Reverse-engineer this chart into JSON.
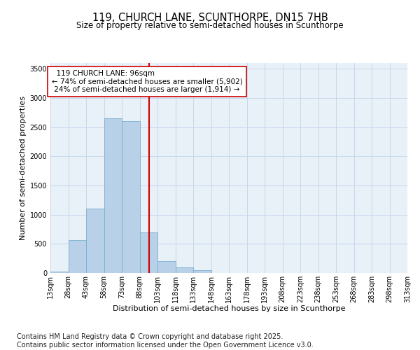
{
  "title": "119, CHURCH LANE, SCUNTHORPE, DN15 7HB",
  "subtitle": "Size of property relative to semi-detached houses in Scunthorpe",
  "xlabel": "Distribution of semi-detached houses by size in Scunthorpe",
  "ylabel": "Number of semi-detached properties",
  "property_size": 96,
  "property_label": "119 CHURCH LANE: 96sqm",
  "pct_smaller": 74,
  "pct_larger": 24,
  "n_smaller": "5,902",
  "n_larger": "1,914",
  "annotation_type": "semi-detached",
  "bar_color": "#b8d0e8",
  "bar_edge_color": "#7aaed0",
  "vline_color": "#cc0000",
  "box_edge_color": "#cc0000",
  "box_face_color": "white",
  "grid_color": "#c8d8ec",
  "background_color": "#e8f0f8",
  "bins": [
    13,
    28,
    43,
    58,
    73,
    88,
    103,
    118,
    133,
    148,
    163,
    178,
    193,
    208,
    223,
    238,
    253,
    268,
    283,
    298,
    313
  ],
  "counts": [
    30,
    560,
    1100,
    2650,
    2600,
    700,
    200,
    100,
    50,
    5,
    5,
    0,
    0,
    0,
    0,
    0,
    0,
    0,
    0,
    0
  ],
  "ylim": [
    0,
    3600
  ],
  "yticks": [
    0,
    500,
    1000,
    1500,
    2000,
    2500,
    3000,
    3500
  ],
  "footer": "Contains HM Land Registry data © Crown copyright and database right 2025.\nContains public sector information licensed under the Open Government Licence v3.0.",
  "footer_fontsize": 7,
  "title_fontsize": 10.5,
  "subtitle_fontsize": 8.5,
  "axis_label_fontsize": 8,
  "tick_fontsize": 7,
  "annotation_fontsize": 7.5
}
